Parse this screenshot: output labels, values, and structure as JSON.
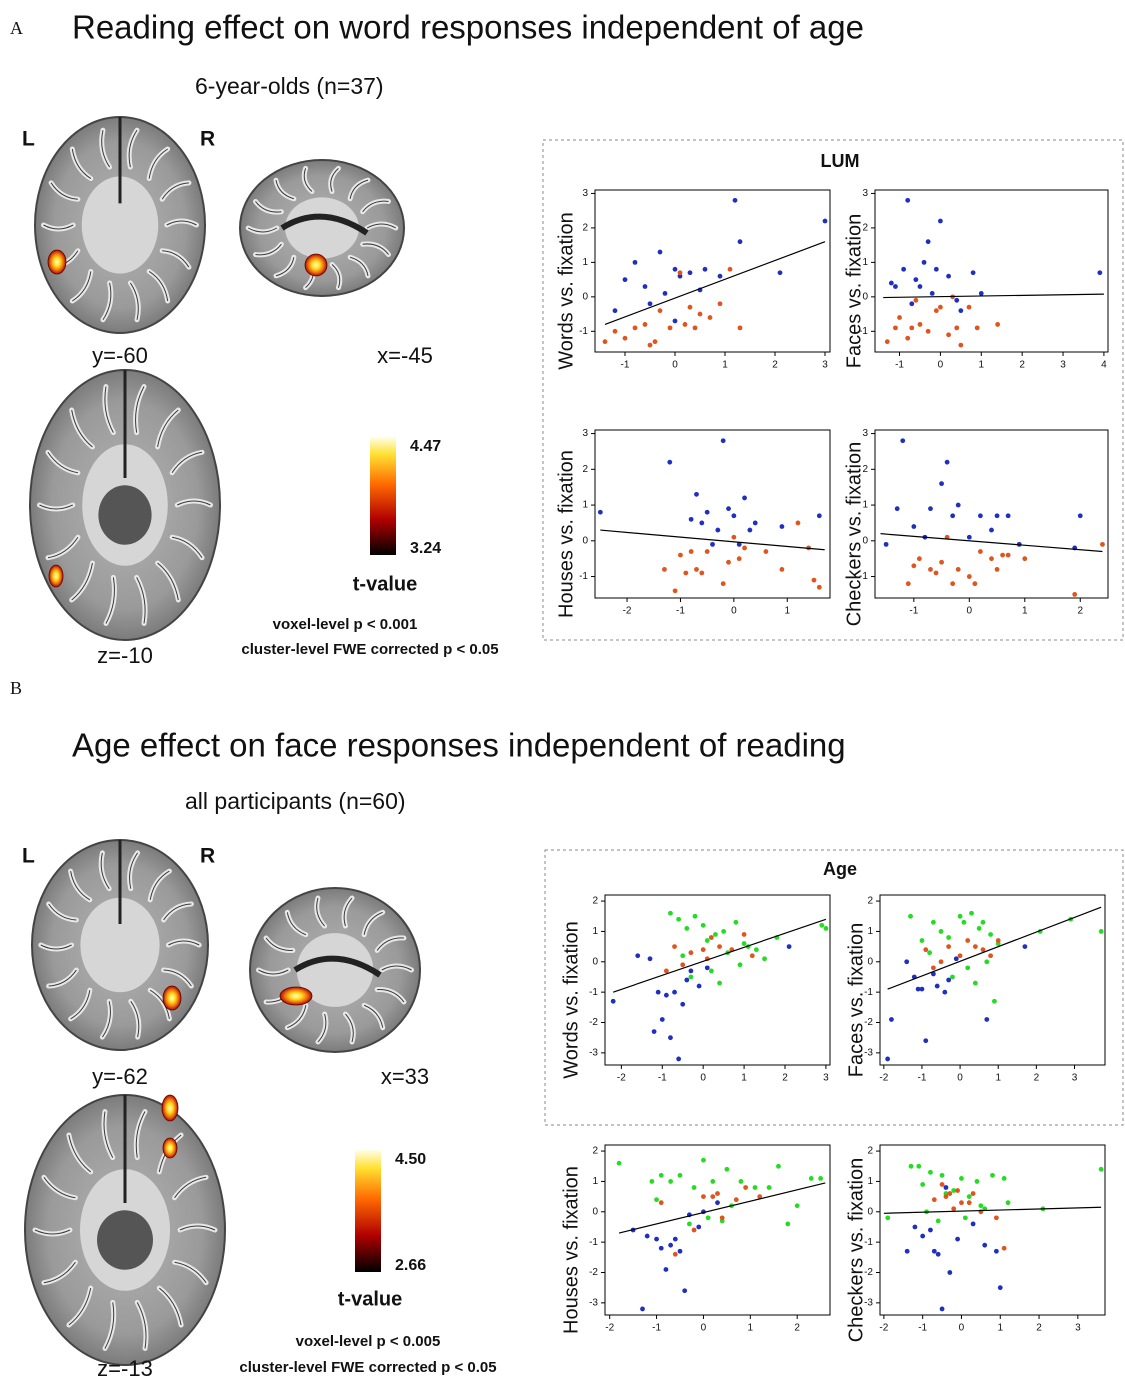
{
  "figure": {
    "panels": [
      {
        "label": "A",
        "title": "Reading effect on word responses independent of age",
        "subtitle": "6-year-olds (n=37)",
        "left": "L",
        "right": "R",
        "slices": [
          "y=-60",
          "x=-45",
          "z=-10"
        ],
        "colorbar": {
          "max": "4.47",
          "min": "3.24",
          "label": "t-value"
        },
        "threshold": [
          "voxel-level p < 0.001",
          "cluster-level FWE corrected p < 0.05"
        ],
        "plots_title": "LUM"
      },
      {
        "label": "B",
        "title": "Age effect on face responses independent of reading",
        "subtitle": "all participants (n=60)",
        "left": "L",
        "right": "R",
        "slices": [
          "y=-62",
          "x=33",
          "z=-13"
        ],
        "colorbar": {
          "max": "4.50",
          "min": "2.66",
          "label": "t-value"
        },
        "threshold": [
          "voxel-level p < 0.005",
          "cluster-level FWE corrected p < 0.05"
        ],
        "plots_title": "Age"
      }
    ]
  },
  "chart_data": [
    {
      "type": "scatter",
      "ylabel": "Words vs. fixation",
      "xlim": [
        -1.6,
        3.1
      ],
      "ylim": [
        -1.6,
        3.1
      ],
      "xticks": [
        -1,
        0,
        1,
        2,
        3
      ],
      "yticks": [
        -1,
        0,
        1,
        2,
        3
      ],
      "series": [
        {
          "color": "#1f2fc0",
          "x": [
            -1.2,
            -1.0,
            -0.8,
            -0.6,
            -0.3,
            0,
            0.1,
            0.3,
            0.5,
            0.9,
            1.2,
            1.3,
            2.1,
            3.0,
            -0.5,
            0.0,
            -0.2,
            0.6
          ],
          "y": [
            -0.4,
            0.5,
            1.0,
            0.3,
            1.3,
            0.8,
            0.6,
            0.7,
            0.2,
            0.6,
            2.8,
            1.6,
            0.7,
            2.2,
            -0.2,
            -0.7,
            0.1,
            0.8
          ]
        },
        {
          "color": "#e0541e",
          "x": [
            -1.4,
            -1.2,
            -1.0,
            -0.8,
            -0.6,
            -0.4,
            -0.3,
            -0.1,
            0.1,
            0.2,
            0.4,
            0.5,
            0.7,
            0.9,
            1.1,
            1.3,
            -0.5,
            0.3
          ],
          "y": [
            -1.3,
            -1.0,
            -1.2,
            -0.9,
            -0.8,
            -1.3,
            -0.4,
            -0.9,
            0.7,
            -0.8,
            -0.9,
            -0.5,
            -0.6,
            -0.2,
            0.8,
            -0.9,
            -1.4,
            -0.3
          ]
        }
      ],
      "fit": {
        "x": [
          -1.4,
          3.0
        ],
        "y": [
          -0.8,
          1.6
        ]
      }
    },
    {
      "type": "scatter",
      "ylabel": "Faces vs. fixation",
      "xlim": [
        -1.6,
        4.1
      ],
      "ylim": [
        -1.6,
        3.1
      ],
      "xticks": [
        -1,
        0,
        1,
        2,
        3,
        4
      ],
      "yticks": [
        -1,
        0,
        1,
        2,
        3
      ],
      "series": [
        {
          "color": "#1f2fc0",
          "x": [
            -1.2,
            -1.1,
            -0.9,
            -0.8,
            -0.6,
            -0.5,
            -0.4,
            -0.3,
            -0.1,
            0,
            0.2,
            0.4,
            0.8,
            1.0,
            3.9,
            -0.7,
            0.5,
            -0.2
          ],
          "y": [
            0.4,
            0.3,
            0.8,
            2.8,
            0.5,
            0.3,
            1.0,
            1.6,
            0.8,
            2.2,
            0.6,
            -0.1,
            0.7,
            0.1,
            0.7,
            -0.2,
            -0.4,
            0.1
          ]
        },
        {
          "color": "#e0541e",
          "x": [
            -1.3,
            -1.1,
            -1.0,
            -0.8,
            -0.7,
            -0.5,
            -0.3,
            -0.1,
            0,
            0.2,
            0.4,
            0.5,
            0.7,
            0.9,
            1.4,
            -0.6,
            0.3
          ],
          "y": [
            -1.3,
            -0.9,
            -0.6,
            -1.2,
            -0.9,
            -0.8,
            -1.0,
            -0.4,
            -0.3,
            -1.1,
            -0.9,
            -1.4,
            -0.3,
            -0.9,
            -0.8,
            -0.1,
            0.0
          ]
        }
      ],
      "fit": {
        "x": [
          -1.4,
          4.0
        ],
        "y": [
          -0.02,
          0.08
        ]
      }
    },
    {
      "type": "scatter",
      "ylabel": "Houses vs. fixation",
      "xlim": [
        -2.6,
        1.8
      ],
      "ylim": [
        -1.6,
        3.1
      ],
      "xticks": [
        -2,
        -1,
        0,
        1
      ],
      "yticks": [
        -1,
        0,
        1,
        2,
        3
      ],
      "series": [
        {
          "color": "#1f2fc0",
          "x": [
            -2.5,
            -1.2,
            -0.8,
            -0.7,
            -0.6,
            -0.5,
            -0.3,
            -0.2,
            -0.1,
            0,
            0.1,
            0.3,
            0.4,
            0.9,
            1.6,
            -0.4,
            0.2
          ],
          "y": [
            0.8,
            2.2,
            0.6,
            1.3,
            0.5,
            0.8,
            0.3,
            2.8,
            0.9,
            0.7,
            -0.1,
            0.3,
            0.5,
            0.4,
            0.7,
            -0.1,
            1.2
          ]
        },
        {
          "color": "#e0541e",
          "x": [
            -1.3,
            -1.1,
            -1.0,
            -0.9,
            -0.8,
            -0.6,
            -0.5,
            -0.2,
            -0.1,
            0,
            0.1,
            0.2,
            0.6,
            0.9,
            1.2,
            1.4,
            1.5,
            1.6,
            -0.7
          ],
          "y": [
            -0.8,
            -1.4,
            -0.4,
            -0.9,
            -0.3,
            -0.9,
            -0.3,
            -1.2,
            -0.6,
            0.1,
            -0.5,
            -0.2,
            -0.3,
            -0.8,
            0.5,
            -0.2,
            -1.1,
            -1.3,
            -0.8
          ]
        }
      ],
      "fit": {
        "x": [
          -2.5,
          1.7
        ],
        "y": [
          0.3,
          -0.25
        ]
      }
    },
    {
      "type": "scatter",
      "ylabel": "Checkers vs. fixation",
      "xlim": [
        -1.7,
        2.5
      ],
      "ylim": [
        -1.6,
        3.1
      ],
      "xticks": [
        -1,
        0,
        1,
        2
      ],
      "yticks": [
        -1,
        0,
        1,
        2,
        3
      ],
      "series": [
        {
          "color": "#1f2fc0",
          "x": [
            -1.5,
            -1.3,
            -1.2,
            -1.0,
            -0.7,
            -0.5,
            -0.4,
            -0.3,
            -0.2,
            0,
            0.2,
            0.4,
            0.5,
            0.7,
            0.9,
            1.9,
            2.0,
            -0.8
          ],
          "y": [
            -0.1,
            0.9,
            2.8,
            0.4,
            0.9,
            1.6,
            2.2,
            0.7,
            1.0,
            0.1,
            0.7,
            0.3,
            0.7,
            0.7,
            -0.1,
            -0.2,
            0.7,
            0.1
          ]
        },
        {
          "color": "#e0541e",
          "x": [
            -1.1,
            -1.0,
            -0.9,
            -0.7,
            -0.6,
            -0.5,
            -0.3,
            -0.2,
            0,
            0.1,
            0.2,
            0.4,
            0.5,
            0.6,
            0.7,
            1.0,
            1.9,
            2.4,
            -0.4
          ],
          "y": [
            -1.2,
            -0.7,
            -0.5,
            -0.8,
            -0.9,
            -0.6,
            -1.2,
            -0.8,
            -1.0,
            -1.2,
            -0.3,
            -0.5,
            -0.8,
            -0.4,
            -0.4,
            -0.5,
            -1.5,
            -0.1,
            0.1
          ]
        }
      ],
      "fit": {
        "x": [
          -1.6,
          2.4
        ],
        "y": [
          0.2,
          -0.3
        ]
      }
    },
    {
      "type": "scatter",
      "ylabel": "Words vs. fixation",
      "xlim": [
        -2.4,
        3.1
      ],
      "ylim": [
        -3.4,
        2.2
      ],
      "xticks": [
        -2,
        -1,
        0,
        1,
        2,
        3
      ],
      "yticks": [
        -3,
        -2,
        -1,
        0,
        1,
        2
      ],
      "series": [
        {
          "color": "#22dd22",
          "x": [
            -0.8,
            -0.6,
            -0.4,
            -0.2,
            0,
            0.1,
            0.3,
            0.5,
            0.8,
            1.0,
            1.3,
            1.5,
            1.8,
            2.9,
            3.0,
            -0.3,
            0.2,
            0.6,
            0.9,
            -0.5,
            0.4,
            1.1
          ],
          "y": [
            1.6,
            1.4,
            1.1,
            1.5,
            1.2,
            0.7,
            0.9,
            1.0,
            1.3,
            0.6,
            0.4,
            0.1,
            0.8,
            1.2,
            1.1,
            -0.5,
            -0.3,
            0.3,
            -0.1,
            0.2,
            -0.7,
            0.5
          ]
        },
        {
          "color": "#1f2fc0",
          "x": [
            -2.2,
            -1.6,
            -1.3,
            -1.1,
            -1.0,
            -0.9,
            -0.8,
            -0.7,
            -0.6,
            -0.4,
            -0.3,
            -0.1,
            0.1,
            2.1,
            -1.2,
            -0.5
          ],
          "y": [
            -1.3,
            0.2,
            0.1,
            -1.0,
            -1.9,
            -1.1,
            -2.5,
            -1.0,
            -3.2,
            -0.6,
            -0.3,
            -0.8,
            -0.2,
            0.5,
            -2.3,
            -1.4
          ]
        },
        {
          "color": "#e0541e",
          "x": [
            -0.9,
            -0.7,
            -0.5,
            -0.3,
            0,
            0.2,
            0.4,
            0.7,
            1.0,
            1.2,
            0.1
          ],
          "y": [
            -0.3,
            0.5,
            -0.1,
            0.3,
            0.4,
            0.8,
            0.5,
            0.4,
            0.9,
            0.2,
            0.1
          ]
        }
      ],
      "fit": {
        "x": [
          -2.2,
          3.0
        ],
        "y": [
          -1.0,
          1.4
        ]
      }
    },
    {
      "type": "scatter",
      "ylabel": "Faces vs. fixation",
      "xlim": [
        -2.1,
        3.8
      ],
      "ylim": [
        -3.4,
        2.2
      ],
      "xticks": [
        -2,
        -1,
        0,
        1,
        2,
        3
      ],
      "yticks": [
        -3,
        -2,
        -1,
        0,
        1,
        2
      ],
      "series": [
        {
          "color": "#22dd22",
          "x": [
            -1.3,
            -1.0,
            -0.7,
            -0.5,
            -0.3,
            0,
            0.1,
            0.3,
            0.5,
            0.6,
            0.8,
            2.1,
            2.9,
            3.7,
            -0.2,
            0.2,
            0.4,
            0.7,
            0.9,
            -0.8,
            1.0
          ],
          "y": [
            1.5,
            0.7,
            1.3,
            1.0,
            0.8,
            1.5,
            1.3,
            1.6,
            1.1,
            1.3,
            0.9,
            1.0,
            1.4,
            1.0,
            -0.5,
            -0.2,
            -0.7,
            0.0,
            -1.3,
            0.3,
            0.6
          ]
        },
        {
          "color": "#1f2fc0",
          "x": [
            -1.8,
            -1.9,
            -1.4,
            -1.2,
            -1.1,
            -0.9,
            -0.7,
            -0.6,
            -0.4,
            -0.3,
            -0.1,
            0.7,
            -1.0,
            1.7
          ],
          "y": [
            -1.9,
            -3.2,
            0.0,
            -0.5,
            -0.9,
            -2.6,
            -0.4,
            -0.8,
            -1.0,
            -0.6,
            0.1,
            -1.9,
            -0.9,
            0.5
          ]
        },
        {
          "color": "#e0541e",
          "x": [
            -0.9,
            -0.5,
            -0.3,
            0,
            0.2,
            0.4,
            0.6,
            0.8,
            1.0,
            -0.7
          ],
          "y": [
            0.4,
            0.0,
            0.5,
            0.2,
            0.7,
            0.5,
            0.4,
            0.2,
            0.7,
            -0.2
          ]
        }
      ],
      "fit": {
        "x": [
          -1.9,
          3.7
        ],
        "y": [
          -0.9,
          1.8
        ]
      }
    },
    {
      "type": "scatter",
      "ylabel": "Houses vs. fixation",
      "xlim": [
        -2.1,
        2.7
      ],
      "ylim": [
        -3.4,
        2.2
      ],
      "xticks": [
        -2,
        -1,
        0,
        1,
        2
      ],
      "yticks": [
        -3,
        -2,
        -1,
        0,
        1,
        2
      ],
      "series": [
        {
          "color": "#22dd22",
          "x": [
            -1.8,
            -1.1,
            -0.9,
            -0.7,
            -0.5,
            -0.2,
            0,
            0.2,
            0.5,
            0.8,
            1.1,
            1.4,
            1.6,
            2.0,
            2.3,
            2.5,
            -0.3,
            0.1,
            0.6,
            1.8,
            -1.0,
            0.4
          ],
          "y": [
            1.6,
            1.0,
            1.2,
            1.0,
            1.2,
            0.8,
            1.7,
            1.0,
            1.4,
            1.0,
            0.8,
            0.8,
            1.5,
            0.2,
            1.1,
            1.1,
            -0.4,
            -0.2,
            0.2,
            -0.4,
            0.4,
            -0.3
          ]
        },
        {
          "color": "#1f2fc0",
          "x": [
            -1.3,
            -1.2,
            -1.0,
            -0.9,
            -0.8,
            -0.7,
            -0.6,
            -0.4,
            -0.3,
            -0.1,
            0,
            0.3,
            -1.5,
            -0.5
          ],
          "y": [
            -3.2,
            -0.8,
            -0.9,
            -1.2,
            -1.9,
            -1.1,
            -0.9,
            -2.6,
            -0.1,
            -0.5,
            0.0,
            0.3,
            -0.6,
            -1.3
          ]
        },
        {
          "color": "#e0541e",
          "x": [
            -0.9,
            -0.6,
            -0.2,
            0,
            0.2,
            0.3,
            0.4,
            0.7,
            0.9,
            1.2
          ],
          "y": [
            0.3,
            -1.4,
            -0.6,
            0.5,
            0.5,
            0.6,
            -0.2,
            0.4,
            0.8,
            0.5
          ]
        }
      ],
      "fit": {
        "x": [
          -1.8,
          2.6
        ],
        "y": [
          -0.7,
          0.95
        ]
      }
    },
    {
      "type": "scatter",
      "ylabel": "Checkers vs. fixation",
      "xlim": [
        -2.1,
        3.7
      ],
      "ylim": [
        -3.4,
        2.2
      ],
      "xticks": [
        -2,
        -1,
        0,
        1,
        2,
        3
      ],
      "yticks": [
        -3,
        -2,
        -1,
        0,
        1,
        2
      ],
      "series": [
        {
          "color": "#22dd22",
          "x": [
            -1.3,
            -1.1,
            -1.0,
            -0.8,
            -0.5,
            -0.4,
            -0.2,
            0,
            0.2,
            0.4,
            0.6,
            0.8,
            1.1,
            1.2,
            2.1,
            3.6,
            -0.6,
            0.1,
            0.5,
            -0.9,
            -1.9
          ],
          "y": [
            1.5,
            1.5,
            0.9,
            1.3,
            1.2,
            0.6,
            0.7,
            1.1,
            0.5,
            1.0,
            0.1,
            1.2,
            1.1,
            0.3,
            0.1,
            1.4,
            -0.3,
            -0.2,
            0.2,
            0.0,
            -0.2
          ]
        },
        {
          "color": "#1f2fc0",
          "x": [
            -1.4,
            -1.2,
            -1.0,
            -0.8,
            -0.7,
            -0.6,
            -0.5,
            -0.3,
            -0.1,
            0.3,
            0.6,
            0.9,
            -0.4,
            1.0
          ],
          "y": [
            -1.3,
            -0.5,
            -0.8,
            -0.6,
            -1.3,
            -1.4,
            -3.2,
            -2.0,
            -0.9,
            -0.4,
            -1.1,
            -1.3,
            0.8,
            -2.5
          ]
        },
        {
          "color": "#e0541e",
          "x": [
            -0.7,
            -0.5,
            -0.4,
            -0.3,
            -0.1,
            0,
            0.2,
            0.3,
            0.5,
            0.9,
            1.1,
            -0.2
          ],
          "y": [
            0.4,
            0.9,
            0.5,
            0.6,
            0.7,
            0.3,
            0.3,
            0.6,
            0.0,
            -0.2,
            -1.2,
            0.1
          ]
        }
      ],
      "fit": {
        "x": [
          -2.0,
          3.6
        ],
        "y": [
          -0.05,
          0.15
        ]
      }
    }
  ]
}
